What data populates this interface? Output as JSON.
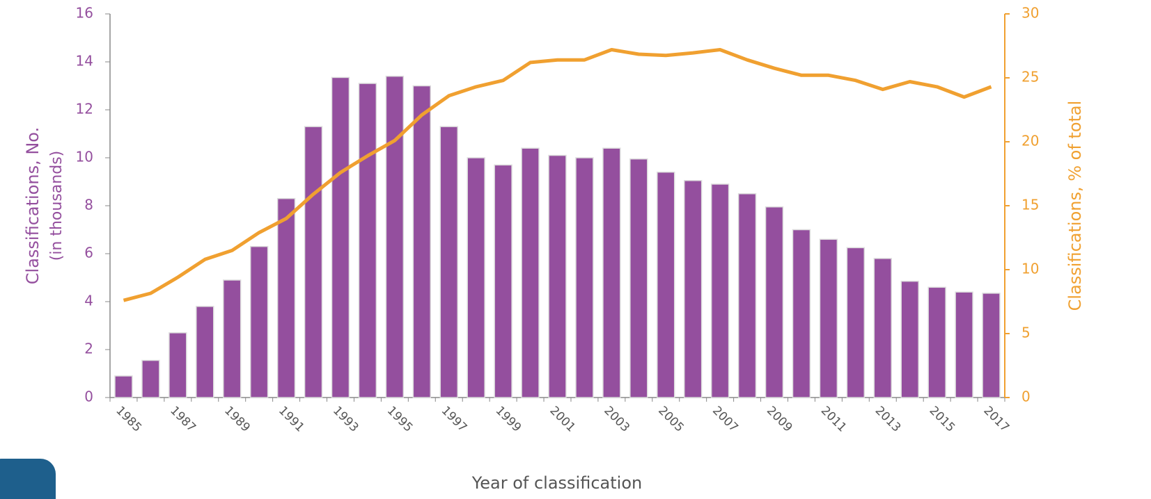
{
  "chart_data": {
    "type": "bar",
    "categories": [
      "1985",
      null,
      "1987",
      null,
      "1989",
      null,
      "1991",
      null,
      "1993",
      null,
      "1995",
      null,
      "1997",
      null,
      "1999",
      null,
      "2001",
      null,
      "2003",
      null,
      "2005",
      null,
      "2007",
      null,
      "2009",
      null,
      "2011",
      null,
      "2013",
      null,
      "2015",
      null,
      "2017"
    ],
    "series": [
      {
        "type": "bar",
        "color": "#944f9e",
        "values": [
          0.9,
          1.55,
          2.7,
          3.8,
          4.9,
          6.3,
          8.3,
          11.3,
          13.35,
          13.1,
          13.4,
          13.0,
          11.3,
          10.0,
          9.7,
          10.4,
          10.1,
          10.0,
          10.4,
          9.95,
          9.4,
          9.05,
          8.9,
          8.5,
          7.95,
          7.0,
          6.6,
          6.25,
          5.8,
          4.85,
          4.6,
          4.4,
          4.35
        ]
      },
      {
        "type": "line",
        "axis": "y2",
        "color": "#f0a030",
        "values": [
          7.6,
          8.15,
          9.4,
          10.8,
          11.5,
          12.9,
          14.0,
          15.9,
          17.6,
          18.9,
          20.1,
          22.1,
          23.6,
          24.3,
          24.8,
          26.2,
          26.4,
          26.4,
          27.2,
          26.85,
          26.75,
          26.95,
          27.2,
          26.4,
          25.75,
          25.2,
          25.2,
          24.8,
          24.1,
          24.7,
          24.3,
          23.5,
          24.3
        ]
      }
    ],
    "ylim": [
      0,
      16
    ],
    "yticks": [
      0,
      2,
      4,
      6,
      8,
      10,
      12,
      14,
      16
    ],
    "y2lim": [
      0,
      30
    ],
    "y2ticks": [
      0,
      5,
      10,
      15,
      20,
      25,
      30
    ],
    "ylabel": [
      "Classifications, No.",
      "(in thousands)"
    ],
    "y2label": "Classifications, % of total",
    "xlabel": "Year of classification"
  }
}
